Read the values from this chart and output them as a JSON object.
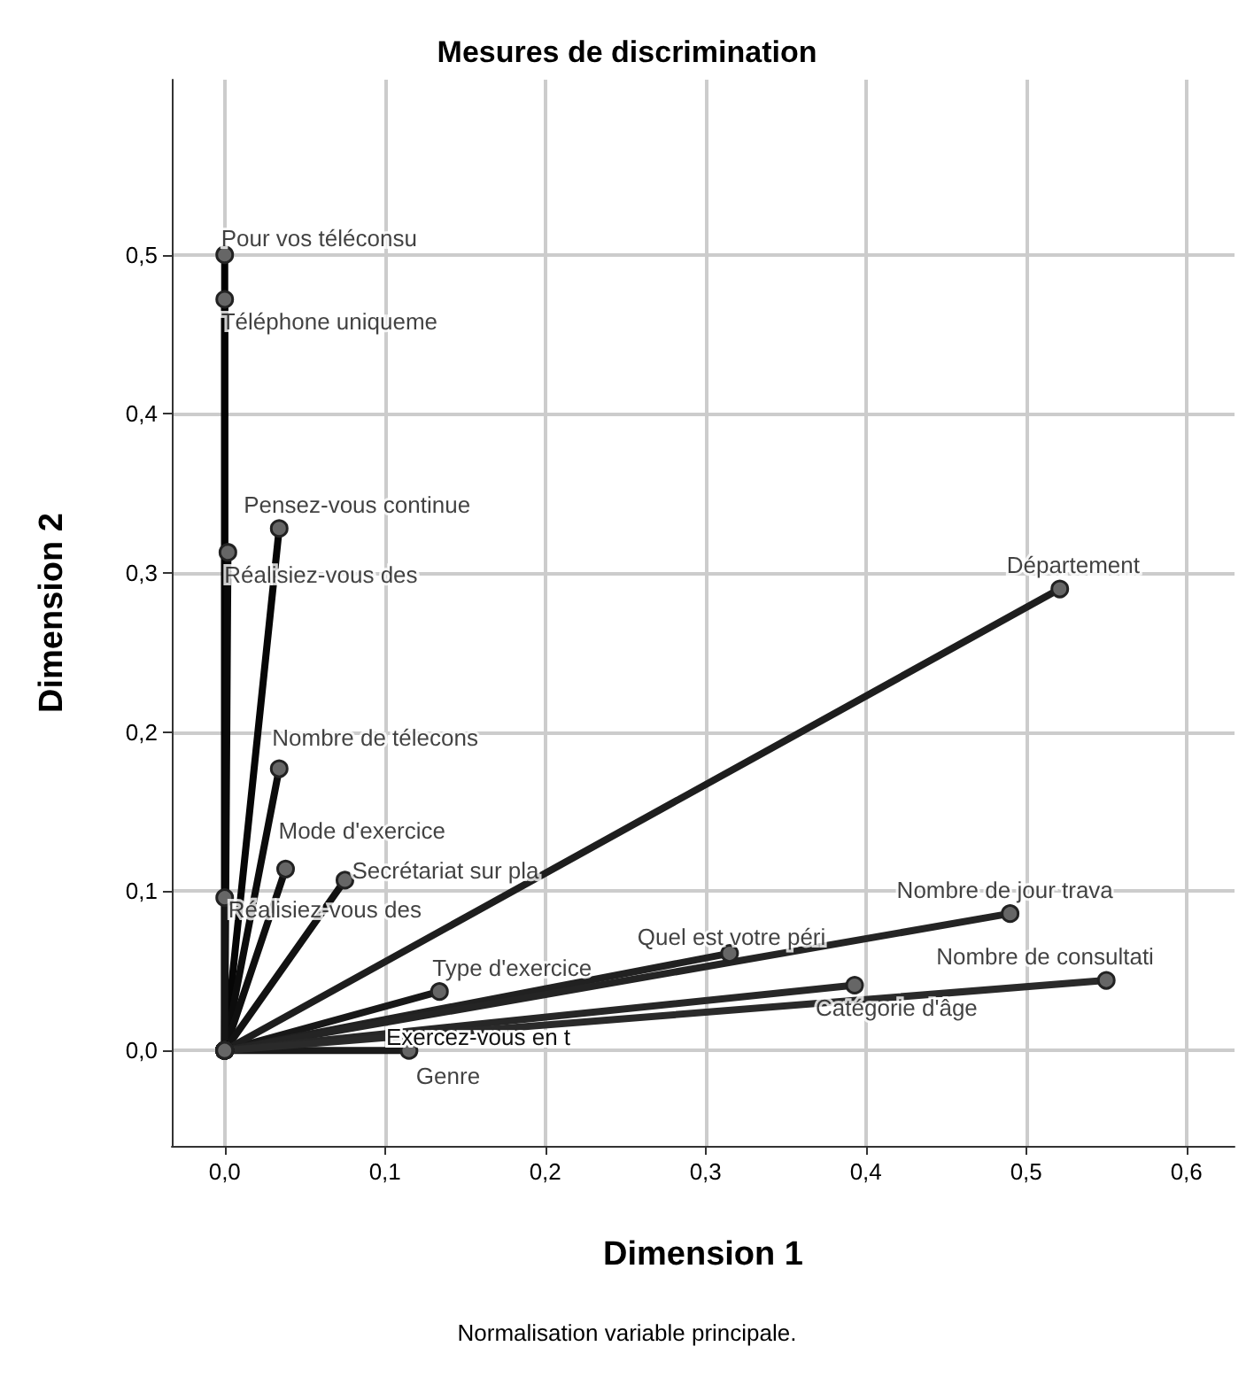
{
  "chart_data": {
    "type": "line",
    "title": "Mesures de discrimination",
    "xlabel": "Dimension 1",
    "ylabel": "Dimension 2",
    "xlim": [
      -0.033,
      0.63
    ],
    "ylim": [
      -0.06,
      0.61
    ],
    "xticks": [
      {
        "value": 0,
        "label": "0,0"
      },
      {
        "value": 0.1,
        "label": "0,1"
      },
      {
        "value": 0.2,
        "label": "0,2"
      },
      {
        "value": 0.3,
        "label": "0,3"
      },
      {
        "value": 0.4,
        "label": "0,4"
      },
      {
        "value": 0.5,
        "label": "0,5"
      },
      {
        "value": 0.6,
        "label": "0,6"
      }
    ],
    "yticks": [
      {
        "value": 0,
        "label": "0,0"
      },
      {
        "value": 0.1,
        "label": "0,1"
      },
      {
        "value": 0.2,
        "label": "0,2"
      },
      {
        "value": 0.3,
        "label": "0,3"
      },
      {
        "value": 0.4,
        "label": "0,4"
      },
      {
        "value": 0.5,
        "label": "0,5"
      }
    ],
    "grid": true,
    "marker": "circle",
    "line_style": "solid",
    "series": [
      {
        "color": "#000000",
        "x": [
          0,
          0.0
        ],
        "values": [
          0,
          0.5
        ]
      },
      {
        "color": "#030303",
        "x": [
          0,
          0.0
        ],
        "values": [
          0,
          0.472
        ]
      },
      {
        "color": "#060606",
        "x": [
          0,
          0.034
        ],
        "values": [
          0,
          0.328
        ]
      },
      {
        "color": "#090909",
        "x": [
          0,
          0.002
        ],
        "values": [
          0,
          0.313
        ]
      },
      {
        "color": "#0c0c0c",
        "x": [
          0,
          0.034
        ],
        "values": [
          0,
          0.177
        ]
      },
      {
        "color": "#0f0f0f",
        "x": [
          0,
          0.038
        ],
        "values": [
          0,
          0.114
        ]
      },
      {
        "color": "#121212",
        "x": [
          0,
          0.075
        ],
        "values": [
          0,
          0.107
        ]
      },
      {
        "color": "#151515",
        "x": [
          0,
          0.0
        ],
        "values": [
          0,
          0.096
        ]
      },
      {
        "color": "#181818",
        "x": [
          0,
          0.134
        ],
        "values": [
          0,
          0.037
        ]
      },
      {
        "color": "#1b1b1b",
        "x": [
          0,
          0.115
        ],
        "values": [
          0,
          0.0
        ]
      },
      {
        "color": "#1e1e1e",
        "x": [
          0,
          0.521
        ],
        "values": [
          0,
          0.29
        ]
      },
      {
        "color": "#212121",
        "x": [
          0,
          0.315
        ],
        "values": [
          0,
          0.061
        ]
      },
      {
        "color": "#242424",
        "x": [
          0,
          0.49
        ],
        "values": [
          0,
          0.086
        ]
      },
      {
        "color": "#272727",
        "x": [
          0,
          0.393
        ],
        "values": [
          0,
          0.041
        ]
      },
      {
        "color": "#2a2a2a",
        "x": [
          0,
          0.55
        ],
        "values": [
          0,
          0.044
        ]
      }
    ],
    "annotations": [
      {
        "text": "Pour vos téléconsu",
        "x": 0.0,
        "y": 0.5
      },
      {
        "text": "Téléphone uniqueme",
        "x": 0.0,
        "y": 0.472
      },
      {
        "text": "Pensez-vous continue",
        "x": 0.034,
        "y": 0.328
      },
      {
        "text": "Réalisiez-vous des",
        "x": 0.002,
        "y": 0.313
      },
      {
        "text": "Nombre de télecons",
        "x": 0.034,
        "y": 0.177
      },
      {
        "text": "Mode d'exercice",
        "x": 0.038,
        "y": 0.114
      },
      {
        "text": "Secrétariat sur pla",
        "x": 0.075,
        "y": 0.107
      },
      {
        "text": "Réalisiez-vous des",
        "x": 0.0,
        "y": 0.096
      },
      {
        "text": "Type d'exercice",
        "x": 0.134,
        "y": 0.037
      },
      {
        "text": "Genre",
        "x": 0.115,
        "y": 0.0
      },
      {
        "text": "Département",
        "x": 0.521,
        "y": 0.29
      },
      {
        "text": "Quel est votre péri",
        "x": 0.315,
        "y": 0.061
      },
      {
        "text": "Nombre de jour trava",
        "x": 0.49,
        "y": 0.086
      },
      {
        "text": "Catégorie d'âge",
        "x": 0.393,
        "y": 0.041
      },
      {
        "text": "Nombre de consultati",
        "x": 0.55,
        "y": 0.044
      },
      "Exercez-vous en t",
      "Normalisation variable principale."
    ]
  }
}
